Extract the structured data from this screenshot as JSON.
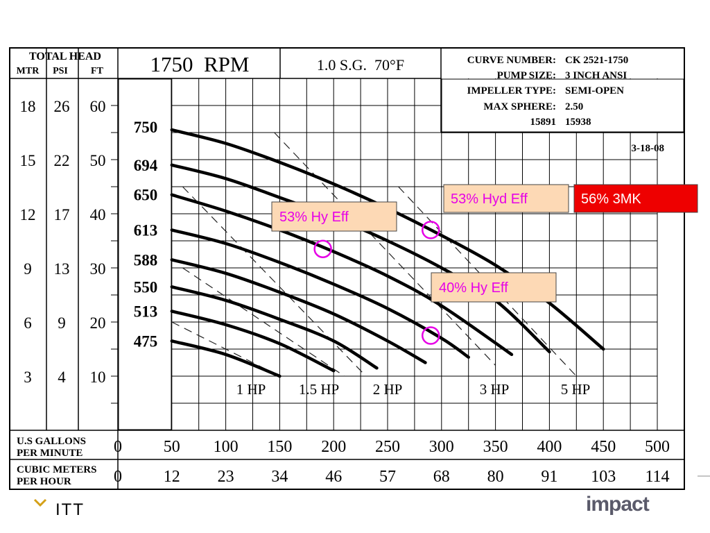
{
  "header": {
    "total_head": "TOTAL HEAD",
    "units": [
      "MTR",
      "PSI",
      "FT"
    ],
    "rpm": "1750  RPM",
    "sg": "1.0 S.G.  70°F",
    "info_labels": [
      "CURVE NUMBER:",
      "PUMP SIZE:",
      "IMPELLER TYPE:",
      "MAX SPHERE:"
    ],
    "info_values": [
      "CK 2521-1750",
      "3 INCH ANSI",
      "SEMI-OPEN",
      "2.50"
    ],
    "info_extra": [
      "15891",
      "15938"
    ],
    "date": "3-18-08"
  },
  "head_scale": {
    "mtr": [
      "18",
      "15",
      "12",
      "9",
      "6",
      "3"
    ],
    "psi": [
      "26",
      "22",
      "17",
      "13",
      "9",
      "4"
    ],
    "ft": [
      "60",
      "50",
      "40",
      "30",
      "20",
      "10"
    ]
  },
  "impeller_labels": [
    "750",
    "694",
    "650",
    "613",
    "588",
    "550",
    "513",
    "475"
  ],
  "hp_labels": [
    "1 HP",
    "1.5 HP",
    "2 HP",
    "3 HP",
    "5 HP"
  ],
  "x_axis": {
    "gpm_label": [
      "U.S GALLONS",
      "PER MINUTE"
    ],
    "gpm_ticks": [
      "0",
      "50",
      "100",
      "150",
      "200",
      "250",
      "300",
      "350",
      "400",
      "450",
      "500"
    ],
    "cmh_label": [
      "CUBIC METERS",
      "PER HOUR"
    ],
    "cmh_ticks": [
      "0",
      "12",
      "23",
      "34",
      "46",
      "57",
      "68",
      "80",
      "91",
      "103",
      "114"
    ]
  },
  "annotations": [
    {
      "text": "53% Hyd Eff",
      "color": "#e600e6",
      "fill": "#fdd9b5"
    },
    {
      "text": "56% 3MK",
      "color": "#ffffff",
      "fill": "#ee0000"
    },
    {
      "text": "53% Hy Eff",
      "color": "#e600e6",
      "fill": "#fdd9b5"
    },
    {
      "text": "40% Hy Eff",
      "color": "#e600e6",
      "fill": "#fdd9b5"
    }
  ],
  "footer": {
    "left_logo": "ITT",
    "right_logo": "impact"
  },
  "chart_data": {
    "type": "line",
    "xlabel": "U.S GALLONS PER MINUTE",
    "ylabel": "TOTAL HEAD",
    "xlim": [
      0,
      500
    ],
    "ylim": [
      0,
      65
    ],
    "series": [
      {
        "name": "750",
        "x": [
          50,
          100,
          150,
          200,
          250,
          300,
          350,
          400,
          450
        ],
        "y": [
          55.5,
          53,
          49.5,
          45.5,
          41,
          36,
          30.5,
          23.5,
          15
        ]
      },
      {
        "name": "694",
        "x": [
          50,
          100,
          150,
          200,
          250,
          300,
          350,
          400
        ],
        "y": [
          49,
          46.5,
          43,
          39.3,
          35,
          30,
          24,
          14.5
        ]
      },
      {
        "name": "650",
        "x": [
          50,
          100,
          150,
          200,
          250,
          300,
          365
        ],
        "y": [
          43.5,
          40.5,
          37,
          33,
          28.5,
          23,
          14
        ]
      },
      {
        "name": "613",
        "x": [
          50,
          100,
          150,
          200,
          250,
          300,
          325
        ],
        "y": [
          37,
          34.5,
          31,
          27,
          22.5,
          17,
          13.5
        ]
      },
      {
        "name": "588",
        "x": [
          50,
          100,
          150,
          200,
          250,
          285
        ],
        "y": [
          31.5,
          29,
          25.5,
          21.5,
          16.5,
          12.5
        ]
      },
      {
        "name": "550",
        "x": [
          50,
          100,
          150,
          200,
          240
        ],
        "y": [
          26.5,
          24,
          20.5,
          16.5,
          11.5
        ]
      },
      {
        "name": "513",
        "x": [
          50,
          100,
          150,
          200
        ],
        "y": [
          22,
          19.5,
          16,
          11
        ]
      },
      {
        "name": "475",
        "x": [
          50,
          100,
          150
        ],
        "y": [
          16.5,
          14,
          10
        ]
      }
    ],
    "hp_lines": [
      {
        "x": [
          50,
          150
        ],
        "y": [
          20,
          10
        ]
      },
      {
        "x": [
          60,
          210
        ],
        "y": [
          30,
          10
        ]
      },
      {
        "x": [
          60,
          230
        ],
        "y": [
          45,
          10
        ]
      },
      {
        "x": [
          145,
          350
        ],
        "y": [
          55,
          12
        ]
      },
      {
        "x": [
          260,
          425
        ],
        "y": [
          45,
          10
        ]
      }
    ],
    "marked_points": [
      {
        "x": 190,
        "y": 33.5
      },
      {
        "x": 290,
        "y": 37
      },
      {
        "x": 290,
        "y": 17.5
      }
    ]
  }
}
